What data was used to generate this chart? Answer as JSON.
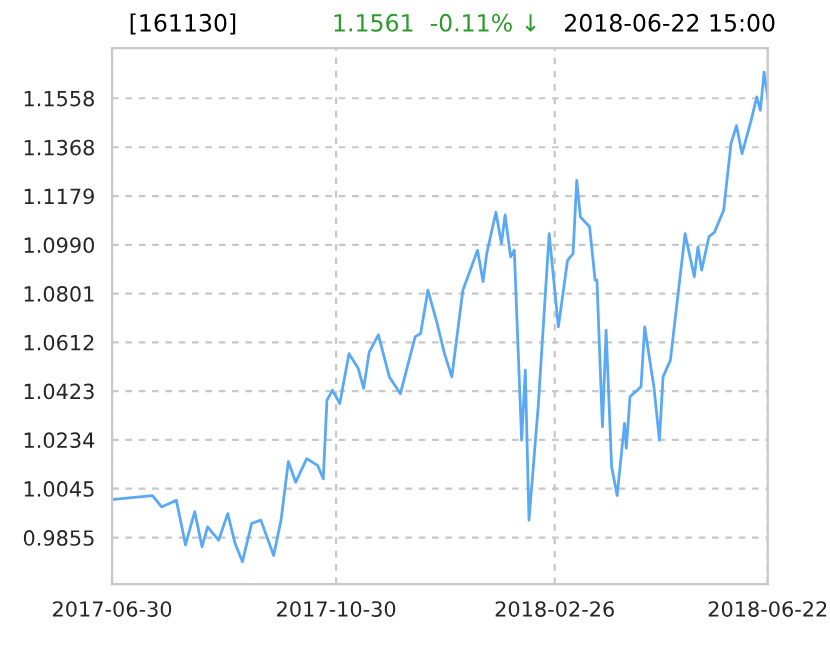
{
  "chart_data": {
    "type": "line",
    "title": "[161130]",
    "subtitle": "1.1561  -0.11% ↓",
    "annotations": [
      "2018-06-22 15:00"
    ],
    "x": [
      "2017-07-01",
      "2017-07-22",
      "2017-07-27",
      "2017-08-04",
      "2017-08-09",
      "2017-08-14",
      "2017-08-18",
      "2017-08-21",
      "2017-08-27",
      "2017-09-01",
      "2017-09-05",
      "2017-09-09",
      "2017-09-14",
      "2017-09-19",
      "2017-09-26",
      "2017-09-30",
      "2017-10-04",
      "2017-10-08",
      "2017-10-14",
      "2017-10-20",
      "2017-10-23",
      "2017-10-25",
      "2017-10-28",
      "2017-11-01",
      "2017-11-06",
      "2017-11-11",
      "2017-11-14",
      "2017-11-17",
      "2017-11-22",
      "2017-11-28",
      "2017-12-04",
      "2017-12-12",
      "2017-12-15",
      "2017-12-19",
      "2017-12-24",
      "2017-12-28",
      "2018-01-01",
      "2018-01-07",
      "2018-01-15",
      "2018-01-18",
      "2018-01-20",
      "2018-01-25",
      "2018-01-28",
      "2018-01-30",
      "2018-02-02",
      "2018-02-04",
      "2018-02-08",
      "2018-02-10",
      "2018-02-12",
      "2018-02-17",
      "2018-02-23",
      "2018-02-28",
      "2018-03-05",
      "2018-03-08",
      "2018-03-10",
      "2018-03-12",
      "2018-03-17",
      "2018-03-20",
      "2018-03-21",
      "2018-03-24",
      "2018-03-26",
      "2018-03-29",
      "2018-04-01",
      "2018-04-05",
      "2018-04-06",
      "2018-04-08",
      "2018-04-14",
      "2018-04-16",
      "2018-04-21",
      "2018-04-24",
      "2018-04-26",
      "2018-04-30",
      "2018-05-04",
      "2018-05-08",
      "2018-05-13",
      "2018-05-15",
      "2018-05-17",
      "2018-05-21",
      "2018-05-24",
      "2018-05-29",
      "2018-06-02",
      "2018-06-05",
      "2018-06-08",
      "2018-06-13",
      "2018-06-16",
      "2018-06-18",
      "2018-06-20",
      "2018-06-22"
    ],
    "series": [
      {
        "color": "#5aa9f5",
        "values": [
          1.0003,
          1.0018,
          0.9974,
          1.0,
          0.9827,
          0.9956,
          0.982,
          0.9897,
          0.9845,
          0.9948,
          0.9832,
          0.9762,
          0.991,
          0.9923,
          0.9786,
          0.9923,
          1.015,
          1.007,
          1.0161,
          1.0134,
          1.0083,
          1.0388,
          1.0426,
          1.0375,
          1.0568,
          1.0512,
          1.0434,
          1.0574,
          1.0641,
          1.0478,
          1.0413,
          1.0633,
          1.0646,
          1.0814,
          1.0685,
          1.0568,
          1.0478,
          1.0814,
          1.0969,
          1.0847,
          1.0956,
          1.1116,
          1.0995,
          1.1106,
          1.0943,
          1.0969,
          1.0233,
          1.0504,
          0.9923,
          1.0362,
          1.1033,
          1.0672,
          1.093,
          1.0956,
          1.124,
          1.1098,
          1.106,
          1.0853,
          1.0853,
          1.0285,
          1.0659,
          1.013,
          1.0018,
          1.0298,
          1.0202,
          1.0401,
          1.044,
          1.0672,
          1.044,
          1.0233,
          1.0478,
          1.0543,
          1.0788,
          1.1033,
          1.0866,
          1.0982,
          1.0892,
          1.1021,
          1.1039,
          1.1124,
          1.1382,
          1.1452,
          1.1343,
          1.1473,
          1.1563,
          1.1511,
          1.1659,
          1.1561
        ]
      }
    ],
    "xlim": [
      "2017-06-30",
      "2018-06-22"
    ],
    "xticks": [
      "2017-06-30",
      "2017-10-30",
      "2018-02-26",
      "2018-06-22"
    ],
    "ylim": [
      0.9675,
      1.1752
    ],
    "yticks": [
      0.9855,
      1.0045,
      1.0234,
      1.0423,
      1.0612,
      1.0801,
      {
        "value": 1.099,
        "label": "1.0990"
      },
      1.1179,
      1.1368,
      1.1558
    ],
    "grid": true,
    "line_style": "solid",
    "marker": "none"
  }
}
